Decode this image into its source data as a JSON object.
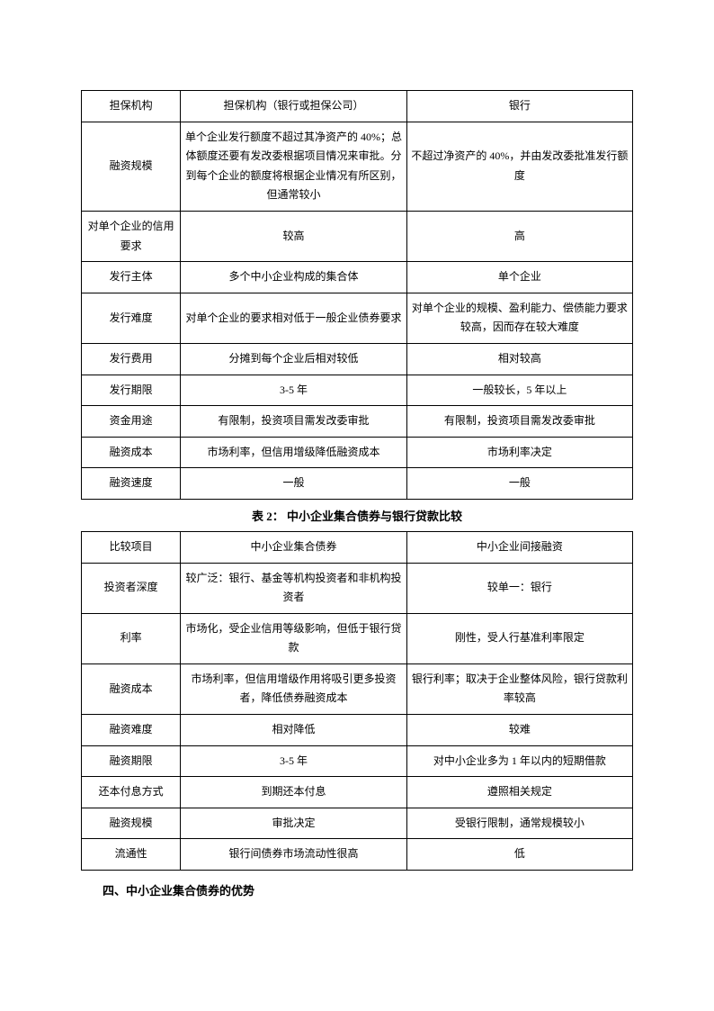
{
  "table1": {
    "rows": [
      {
        "c1": "担保机构",
        "c2": "担保机构（银行或担保公司）",
        "c3": "银行"
      },
      {
        "c1": "融资规模",
        "c2": "单个企业发行额度不超过其净资产的 40%；总体额度还要有发改委根据项目情况来审批。分到每个企业的额度将根据企业情况有所区别，但通常较小",
        "c3": "不超过净资产的 40%，并由发改委批准发行额度"
      },
      {
        "c1": "对单个企业的信用要求",
        "c2": "较高",
        "c3": "高"
      },
      {
        "c1": "发行主体",
        "c2": "多个中小企业构成的集合体",
        "c3": "单个企业"
      },
      {
        "c1": "发行难度",
        "c2": "对单个企业的要求相对低于一般企业债券要求",
        "c3": "对单个企业的规模、盈利能力、偿债能力要求较高，因而存在较大难度"
      },
      {
        "c1": "发行费用",
        "c2": "分摊到每个企业后相对较低",
        "c3": "相对较高"
      },
      {
        "c1": "发行期限",
        "c2": "3-5 年",
        "c3": "一般较长，5 年以上"
      },
      {
        "c1": "资金用途",
        "c2": "有限制，投资项目需发改委审批",
        "c3": "有限制，投资项目需发改委审批"
      },
      {
        "c1": "融资成本",
        "c2": "市场利率，但信用增级降低融资成本",
        "c3": "市场利率决定"
      },
      {
        "c1": "融资速度",
        "c2": "一般",
        "c3": "一般"
      }
    ]
  },
  "caption2": "表 2：   中小企业集合债券与银行贷款比较",
  "table2": {
    "header": {
      "c1": "比较项目",
      "c2": "中小企业集合债券",
      "c3": "中小企业间接融资"
    },
    "rows": [
      {
        "c1": "投资者深度",
        "c2": "较广泛：银行、基金等机构投资者和非机构投资者",
        "c3": "较单一：银行"
      },
      {
        "c1": "利率",
        "c2": "市场化，受企业信用等级影响，但低于银行贷款",
        "c3": "刚性，受人行基准利率限定"
      },
      {
        "c1": "融资成本",
        "c2": "市场利率，但信用增级作用将吸引更多投资者，降低债券融资成本",
        "c3": "银行利率；取决于企业整体风险，银行贷款利率较高"
      },
      {
        "c1": "融资难度",
        "c2": "相对降低",
        "c3": "较难"
      },
      {
        "c1": "融资期限",
        "c2": "3-5 年",
        "c3": "对中小企业多为 1 年以内的短期借款"
      },
      {
        "c1": "还本付息方式",
        "c2": "到期还本付息",
        "c3": "遵照相关规定"
      },
      {
        "c1": "融资规模",
        "c2": "审批决定",
        "c3": "受银行限制，通常规模较小"
      },
      {
        "c1": "流通性",
        "c2": "银行间债券市场流动性很高",
        "c3": "低"
      }
    ]
  },
  "heading4": "四、中小企业集合债券的优势"
}
